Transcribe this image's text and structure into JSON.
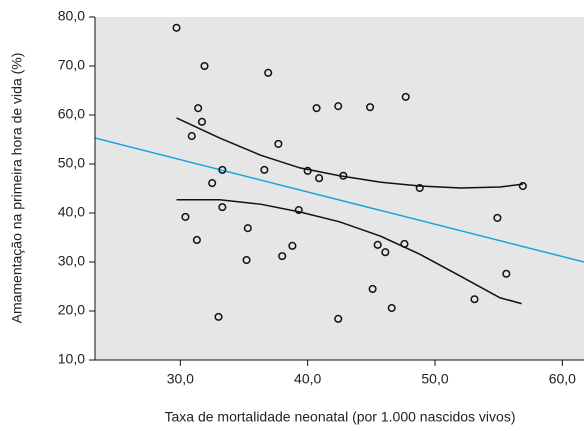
{
  "chart_data": {
    "type": "scatter",
    "x_label": "Taxa de mortalidade neonatal (por 1.000 nascidos vivos)",
    "y_label": "Amamentação na primeira hora de vida (%)",
    "xlim": [
      23.3,
      61.7
    ],
    "ylim": [
      10,
      80
    ],
    "xticks": [
      {
        "value": 30,
        "label": "30,0"
      },
      {
        "value": 40,
        "label": "40,0"
      },
      {
        "value": 50,
        "label": "50,0"
      },
      {
        "value": 60,
        "label": "60,0"
      }
    ],
    "yticks": [
      {
        "value": 10,
        "label": "10,0"
      },
      {
        "value": 20,
        "label": "20,0"
      },
      {
        "value": 30,
        "label": "30,0"
      },
      {
        "value": 40,
        "label": "40,0"
      },
      {
        "value": 50,
        "label": "50,0"
      },
      {
        "value": 60,
        "label": "60,0"
      },
      {
        "value": 70,
        "label": "70,0"
      },
      {
        "value": 80,
        "label": "80,0"
      }
    ],
    "background": "#e6e6e6",
    "marker_color": "#111111",
    "x": [
      29.7,
      31.9,
      36.9,
      31.4,
      31.7,
      30.9,
      40.7,
      42.4,
      44.9,
      47.7,
      37.7,
      33.3,
      36.6,
      32.5,
      40.0,
      40.9,
      42.8,
      48.8,
      56.9,
      33.3,
      39.3,
      30.4,
      54.9,
      35.3,
      31.3,
      38.8,
      45.5,
      47.6,
      35.2,
      38.0,
      46.1,
      45.1,
      55.6,
      53.1,
      46.6,
      33.0,
      42.4
    ],
    "y": [
      77.8,
      70.0,
      68.6,
      61.4,
      58.6,
      55.7,
      61.4,
      61.8,
      61.6,
      63.7,
      54.1,
      48.8,
      48.8,
      46.1,
      48.6,
      47.1,
      47.6,
      45.1,
      45.5,
      41.2,
      40.6,
      39.2,
      39.0,
      36.9,
      34.5,
      33.3,
      33.5,
      33.7,
      30.4,
      31.2,
      32.0,
      24.5,
      27.6,
      22.4,
      20.6,
      18.8,
      18.4
    ],
    "fit_line": {
      "color": "#1aa3e0",
      "x": [
        23.3,
        61.7
      ],
      "y": [
        55.3,
        30.0
      ]
    },
    "confidence_bands": [
      {
        "color": "#111111",
        "x": [
          29.7,
          33.1,
          36.3,
          39.4,
          42.5,
          45.7,
          48.8,
          52.0,
          55.1,
          56.9
        ],
        "y": [
          59.4,
          55.3,
          51.8,
          49.2,
          47.6,
          46.3,
          45.5,
          45.1,
          45.3,
          45.9
        ]
      },
      {
        "color": "#111111",
        "x": [
          29.7,
          33.1,
          36.3,
          39.4,
          42.5,
          45.7,
          48.8,
          52.0,
          55.1,
          56.8
        ],
        "y": [
          42.7,
          42.7,
          41.8,
          40.2,
          38.2,
          35.3,
          31.6,
          27.1,
          22.7,
          21.5
        ]
      }
    ]
  }
}
